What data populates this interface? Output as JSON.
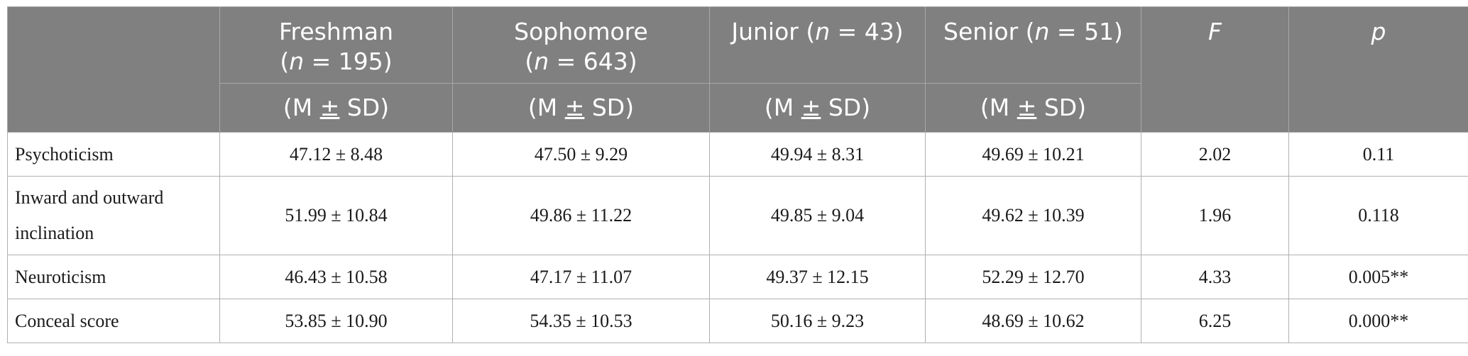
{
  "header": {
    "freshman": {
      "name": "Freshman",
      "n_prefix": "(",
      "n_var": "n",
      "n_eq": " = 195)"
    },
    "sophomore": {
      "name": "Sophomore",
      "n_prefix": "(",
      "n_var": "n",
      "n_eq": " = 643)"
    },
    "junior": {
      "name_prefix": "Junior (",
      "n_var": "n",
      "n_eq": " = 43)"
    },
    "senior": {
      "name_prefix": "Senior (",
      "n_var": "n",
      "n_eq": " = 51)"
    },
    "f_label": "F",
    "p_label": "p",
    "stat_m": "(M ",
    "stat_pm": "±",
    "stat_sd": " SD)"
  },
  "rows": [
    {
      "label": "Psychoticism",
      "freshman": "47.12 ± 8.48",
      "sophomore": "47.50 ± 9.29",
      "junior": "49.94 ± 8.31",
      "senior": "49.69 ± 10.21",
      "f": "2.02",
      "p": "0.11"
    },
    {
      "label": "Inward and outward inclination",
      "freshman": "51.99 ± 10.84",
      "sophomore": "49.86 ± 11.22",
      "junior": "49.85 ± 9.04",
      "senior": "49.62 ± 10.39",
      "f": "1.96",
      "p": "0.118"
    },
    {
      "label": "Neuroticism",
      "freshman": "46.43 ± 10.58",
      "sophomore": "47.17 ± 11.07",
      "junior": "49.37 ± 12.15",
      "senior": "52.29 ± 12.70",
      "f": "4.33",
      "p": "0.005**"
    },
    {
      "label": "Conceal score",
      "freshman": "53.85 ± 10.90",
      "sophomore": "54.35 ± 10.53",
      "junior": "50.16 ± 9.23",
      "senior": "48.69 ± 10.62",
      "f": "6.25",
      "p": "0.000**"
    }
  ]
}
